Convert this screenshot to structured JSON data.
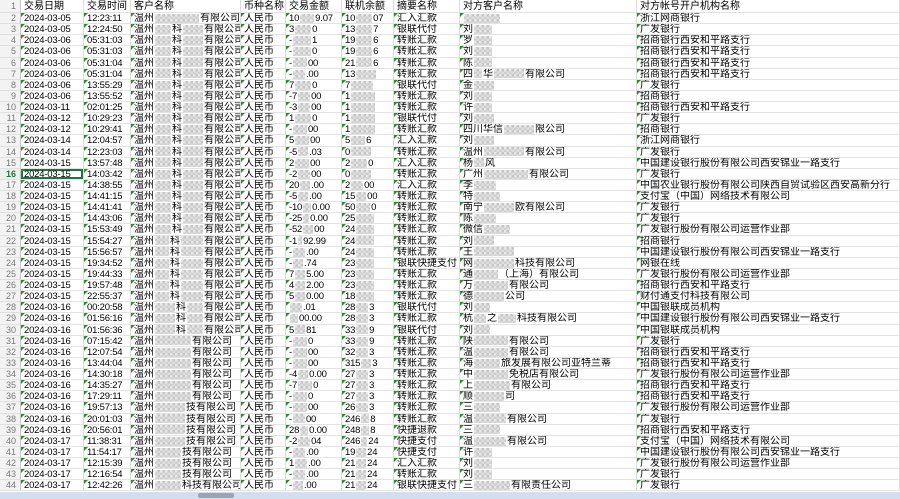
{
  "sheet": {
    "first_row_number": "1"
  },
  "columns": [
    {
      "key": "date",
      "label": "交易日期"
    },
    {
      "key": "time",
      "label": "交易时间"
    },
    {
      "key": "customer",
      "label": "客户名称"
    },
    {
      "key": "currency",
      "label": "币种名称"
    },
    {
      "key": "amount",
      "label": "交易金额"
    },
    {
      "key": "balance",
      "label": "联机余额"
    },
    {
      "key": "summary",
      "label": "摘要名称"
    },
    {
      "key": "counterparty",
      "label": "对方客户名称"
    },
    {
      "key": "bank",
      "label": "对方帐号开户机构名称"
    }
  ],
  "selection": {
    "row": 16,
    "column": "date"
  },
  "colors": {
    "triangle": "#2e8b2e",
    "selection": "#217346",
    "rownum_bg": "#f3f3f3",
    "bottom_bar": "#d3dfee"
  },
  "rows": [
    {
      "n": 2,
      "date": "2024-03-05",
      "time": "12:23:11",
      "cust": [
        "温州",
        44,
        "有限公司"
      ],
      "cur": "人民币",
      "amt": [
        "10",
        14,
        "9.07"
      ],
      "bal": [
        "10",
        16,
        "07"
      ],
      "sum": "汇入汇款",
      "cp": [
        36
      ],
      "bank": "浙江网商银行"
    },
    {
      "n": 3,
      "date": "2024-03-05",
      "time": "12:24:50",
      "cust": [
        "温州",
        16,
        "科",
        20,
        "有限公司"
      ],
      "cur": "人民币",
      "amt": [
        "3",
        16,
        "0"
      ],
      "bal": [
        "13",
        16,
        "7"
      ],
      "sum": "银联代付",
      "cp": [
        "刘",
        18
      ],
      "bank": "广发银行"
    },
    {
      "n": 4,
      "date": "2024-03-06",
      "time": "05:31:03",
      "cust": [
        "温州",
        16,
        "科",
        20,
        "有限公司"
      ],
      "cur": "人民币",
      "amt": [
        "-",
        18,
        "1"
      ],
      "bal": [
        "19",
        16,
        "6"
      ],
      "sum": "转账汇款",
      "cp": [
        "罗",
        18
      ],
      "bank": "招商银行西安和平路支行"
    },
    {
      "n": 5,
      "date": "2024-03-06",
      "time": "05:31:03",
      "cust": [
        "温州",
        16,
        "科",
        20,
        "有限公司"
      ],
      "cur": "人民币",
      "amt": [
        "-",
        18,
        "0"
      ],
      "bal": [
        "19",
        16,
        "6"
      ],
      "sum": "转账汇款",
      "cp": [
        "刘",
        18
      ],
      "bank": "招商银行西安和平路支行"
    },
    {
      "n": 6,
      "date": "2024-03-06",
      "time": "05:31:04",
      "cust": [
        "温州",
        16,
        "科",
        20,
        "有限公司"
      ],
      "cur": "人民币",
      "amt": [
        "-",
        14,
        "00"
      ],
      "bal": [
        "21",
        16,
        "6"
      ],
      "sum": "转账汇款",
      "cp": [
        "陈",
        18
      ],
      "bank": "招商银行西安和平路支行"
    },
    {
      "n": 7,
      "date": "2024-03-06",
      "time": "05:31:04",
      "cust": [
        "温州",
        16,
        "科",
        20,
        "有限公司"
      ],
      "cur": "人民币",
      "amt": [
        "-",
        12,
        ".00"
      ],
      "bal": [
        "13",
        20
      ],
      "sum": "转账汇款",
      "cp": [
        "四",
        8,
        "华",
        30,
        "有限公司"
      ],
      "bank": "招商银行西安和平路支行"
    },
    {
      "n": 8,
      "date": "2024-03-06",
      "time": "13:55:29",
      "cust": [
        "温州",
        16,
        "科",
        20,
        "有限公司"
      ],
      "cur": "人民币",
      "amt": [
        "7",
        16,
        "0"
      ],
      "bal": [
        "7",
        22
      ],
      "sum": "银联代付",
      "cp": [
        "金",
        20
      ],
      "bank": "广发银行"
    },
    {
      "n": 9,
      "date": "2024-03-06",
      "time": "13:55:52",
      "cust": [
        "温州",
        16,
        "科",
        20,
        "有限公司"
      ],
      "cur": "人民币",
      "amt": [
        "-7",
        12,
        "00"
      ],
      "bal": [
        "1",
        24
      ],
      "sum": "转账汇款",
      "cp": [
        "刘",
        18
      ],
      "bank": "招商银行"
    },
    {
      "n": 10,
      "date": "2024-03-11",
      "time": "02:01:25",
      "cust": [
        "温州",
        16,
        "科",
        20,
        "有限公司"
      ],
      "cur": "人民币",
      "amt": [
        "-3",
        12,
        "00"
      ],
      "bal": [
        "1",
        24
      ],
      "sum": "转账汇款",
      "cp": [
        "许",
        18
      ],
      "bank": "招商银行西安和平路支行"
    },
    {
      "n": 11,
      "date": "2024-03-12",
      "time": "10:29:23",
      "cust": [
        "温州",
        16,
        "科",
        20,
        "有限公司"
      ],
      "cur": "人民币",
      "amt": [
        "1",
        16,
        "0"
      ],
      "bal": [
        "1",
        24
      ],
      "sum": "银联代付",
      "cp": [
        "刘",
        20
      ],
      "bank": "广发银行"
    },
    {
      "n": 12,
      "date": "2024-03-12",
      "time": "10:29:41",
      "cust": [
        "温州",
        16,
        "科",
        20,
        "有限公司"
      ],
      "cur": "人民币",
      "amt": [
        "-",
        14,
        "00"
      ],
      "bal": [
        "1",
        24
      ],
      "sum": "转账汇款",
      "cp": [
        "四川华信",
        30,
        "限公司"
      ],
      "bank": "招商银行"
    },
    {
      "n": 13,
      "date": "2024-03-14",
      "time": "12:04:57",
      "cust": [
        "温州",
        16,
        "科",
        20,
        "有限公司"
      ],
      "cur": "人民币",
      "amt": [
        "5",
        14,
        "00"
      ],
      "bal": [
        "5",
        14,
        "6"
      ],
      "sum": "汇入汇款",
      "cp": [
        "刘",
        20
      ],
      "bank": "浙江网商银行"
    },
    {
      "n": 14,
      "date": "2024-03-14",
      "time": "12:23:03",
      "cust": [
        "温州",
        16,
        "科",
        20,
        "有限公司"
      ],
      "cur": "人民币",
      "amt": [
        "-5",
        10,
        ".03"
      ],
      "bal": [
        "0",
        20
      ],
      "sum": "转账汇款",
      "cp": [
        "温州",
        40,
        "有限公司"
      ],
      "bank": "广发银行"
    },
    {
      "n": 15,
      "date": "2024-03-15",
      "time": "13:57:48",
      "cust": [
        "温州",
        16,
        "科",
        20,
        "有限公司"
      ],
      "cur": "人民币",
      "amt": [
        "2",
        14,
        "00"
      ],
      "bal": [
        "2",
        16,
        "0"
      ],
      "sum": "汇入汇款",
      "cp": [
        "杨",
        10,
        "风"
      ],
      "bank": "中国建设银行股份有限公司西安锦业一路支行"
    },
    {
      "n": 16,
      "date": "2024-03-15",
      "time": "14:03:42",
      "cust": [
        "温州",
        16,
        "科",
        20,
        "有限公司"
      ],
      "cur": "人民币",
      "amt": [
        "-2",
        12,
        "00"
      ],
      "bal": [
        "0",
        20
      ],
      "sum": "转账汇款",
      "cp": [
        "广州",
        44,
        "有限公司"
      ],
      "bank": "广发银行"
    },
    {
      "n": 17,
      "date": "2024-03-15",
      "time": "14:38:55",
      "cust": [
        "温州",
        16,
        "科",
        20,
        "有限公司"
      ],
      "cur": "人民币",
      "amt": [
        "20",
        10,
        ".00"
      ],
      "bal": [
        "2",
        12,
        "00"
      ],
      "sum": "汇入汇款",
      "cp": [
        "李",
        22
      ],
      "bank": "中国农业银行股份有限公司陕西自贸试验区西安高新分行"
    },
    {
      "n": 18,
      "date": "2024-03-15",
      "time": "14:41:15",
      "cust": [
        "温州",
        16,
        "科",
        20,
        "有限公司"
      ],
      "cur": "人民币",
      "amt": [
        "-5",
        10,
        ".00"
      ],
      "bal": [
        "15",
        10,
        "00"
      ],
      "sum": "转账汇款",
      "cp": [
        "特",
        26
      ],
      "bank": "支付宝（中国）网络技术有限公司"
    },
    {
      "n": 19,
      "date": "2024-03-15",
      "time": "14:41:41",
      "cust": [
        "温州",
        16,
        "科",
        20,
        "有限公司"
      ],
      "cur": "人民币",
      "amt": [
        "-10",
        8,
        "0.00"
      ],
      "bal": [
        "50",
        14,
        "0"
      ],
      "sum": "转账汇款",
      "cp": [
        "南宁",
        30,
        "欧有限公司"
      ],
      "bank": "广发银行"
    },
    {
      "n": 20,
      "date": "2024-03-15",
      "time": "14:43:06",
      "cust": [
        "温州",
        16,
        "科",
        20,
        "有限公司"
      ],
      "cur": "人民币",
      "amt": [
        "-25",
        6,
        "0.00"
      ],
      "bal": [
        "25",
        18
      ],
      "sum": "转账汇款",
      "cp": [
        "陈",
        22
      ],
      "bank": "广发银行"
    },
    {
      "n": 21,
      "date": "2024-03-15",
      "time": "15:53:49",
      "cust": [
        "温州",
        16,
        "科",
        20,
        "有限公司"
      ],
      "cur": "人民币",
      "amt": [
        "-52",
        10,
        "00"
      ],
      "bal": [
        "24",
        18
      ],
      "sum": "转账汇款",
      "cp": [
        "微信",
        26
      ],
      "bank": "广发银行股份有限公司运营作业部"
    },
    {
      "n": 22,
      "date": "2024-03-15",
      "time": "15:54:27",
      "cust": [
        "温州",
        14,
        "科",
        22,
        "有限公司"
      ],
      "cur": "人民币",
      "amt": [
        "-1",
        4,
        "92.99"
      ],
      "bal": [
        "24",
        18
      ],
      "sum": "转账汇款",
      "cp": [
        "刘",
        20
      ],
      "bank": "招商银行"
    },
    {
      "n": 23,
      "date": "2024-03-15",
      "time": "15:56:57",
      "cust": [
        "温州",
        14,
        "科",
        22,
        "有限公司"
      ],
      "cur": "人民币",
      "amt": [
        "-",
        12,
        ".00"
      ],
      "bal": [
        "24",
        18
      ],
      "sum": "转账汇款",
      "cp": [
        "王",
        40
      ],
      "bank": "中国建设银行股份有限公司西安锦业一路支行"
    },
    {
      "n": 24,
      "date": "2024-03-15",
      "time": "19:34:52",
      "cust": [
        "温州",
        14,
        "科",
        22,
        "有限公司"
      ],
      "cur": "人民币",
      "amt": [
        "-",
        10,
        ".74"
      ],
      "bal": [
        "23",
        18
      ],
      "sum": "银联快捷支付",
      "cp": [
        "网",
        40,
        "科技有限公司"
      ],
      "bank": "网银在线"
    },
    {
      "n": 25,
      "date": "2024-03-15",
      "time": "19:44:33",
      "cust": [
        "温州",
        14,
        "科",
        22,
        "有限公司"
      ],
      "cur": "人民币",
      "amt": [
        "7",
        10,
        "5.00"
      ],
      "bal": [
        "23",
        18
      ],
      "sum": "转账汇款",
      "cp": [
        "通",
        24,
        "（上海）有限公司"
      ],
      "bank": "广发银行股份有限公司运营作业部"
    },
    {
      "n": 26,
      "date": "2024-03-15",
      "time": "19:57:48",
      "cust": [
        "温州",
        14,
        "科",
        22,
        "有限公司"
      ],
      "cur": "人民币",
      "amt": [
        "4",
        10,
        "2.00"
      ],
      "bal": [
        "23",
        18
      ],
      "sum": "转账汇款",
      "cp": [
        "万",
        34,
        "有限公司"
      ],
      "bank": "招商银行西安和平路支行"
    },
    {
      "n": 27,
      "date": "2024-03-15",
      "time": "22:55:37",
      "cust": [
        "温州",
        14,
        "科",
        22,
        "有限公司"
      ],
      "cur": "人民币",
      "amt": [
        "5",
        10,
        "0.00"
      ],
      "bal": [
        "18",
        18
      ],
      "sum": "转账汇款",
      "cp": [
        "德",
        30,
        "公司"
      ],
      "bank": "财付通支付科技有限公司"
    },
    {
      "n": 28,
      "date": "2024-03-16",
      "time": "00:20:58",
      "cust": [
        "温州",
        20,
        "科",
        16,
        "有限公司"
      ],
      "cur": "人民币",
      "amt": [
        12,
        ".01"
      ],
      "bal": [
        "28",
        12,
        "3"
      ],
      "sum": "银联代付",
      "cp": [
        "刘",
        16
      ],
      "bank": "中国银联成员机构"
    },
    {
      "n": 29,
      "date": "2024-03-16",
      "time": "01:56:16",
      "cust": [
        "温州",
        20,
        "科",
        16,
        "有限公司"
      ],
      "cur": "人民币",
      "amt": [
        8,
        "00.00"
      ],
      "bal": [
        "28",
        12,
        "3"
      ],
      "sum": "转账汇款",
      "cp": [
        "杭",
        12,
        "之",
        18,
        "科技有限公司"
      ],
      "bank": "中国建设银行股份有限公司西安锦业一路支行"
    },
    {
      "n": 30,
      "date": "2024-03-16",
      "time": "01:56:36",
      "cust": [
        "温州",
        20,
        "科",
        16,
        "有限公司"
      ],
      "cur": "人民币",
      "amt": [
        "5",
        10,
        "81"
      ],
      "bal": [
        "33",
        12,
        "9"
      ],
      "sum": "银联代付",
      "cp": [
        "刘",
        16
      ],
      "bank": "中国银联成员机构"
    },
    {
      "n": 31,
      "date": "2024-03-16",
      "time": "07:15:42",
      "cust": [
        "温州",
        36,
        "有限公司"
      ],
      "cur": "人民币",
      "amt": [
        "-",
        14,
        "0"
      ],
      "bal": [
        "33",
        12,
        "9"
      ],
      "sum": "转账汇款",
      "cp": [
        "陕",
        34,
        "有限公司"
      ],
      "bank": "广发银行"
    },
    {
      "n": 32,
      "date": "2024-03-16",
      "time": "12:07:54",
      "cust": [
        "温州",
        36,
        "有限公司"
      ],
      "cur": "人民币",
      "amt": [
        "-",
        14,
        "00"
      ],
      "bal": [
        "32",
        12,
        "3"
      ],
      "sum": "转账汇款",
      "cp": [
        "温",
        34,
        "有限公司"
      ],
      "bank": "招商银行西安和平路支行"
    },
    {
      "n": 33,
      "date": "2024-03-16",
      "time": "13:44:04",
      "cust": [
        "温州",
        36,
        "有限公司"
      ],
      "cur": "人民币",
      "amt": [
        "-",
        14,
        "00"
      ],
      "bal": [
        "315",
        10,
        "3"
      ],
      "sum": "转账汇款",
      "cp": [
        "海",
        26,
        "旅发展有限公司亚特兰蒂"
      ],
      "bank": "招商银行西安和平路支行"
    },
    {
      "n": 34,
      "date": "2024-03-16",
      "time": "14:30:18",
      "cust": [
        "温州",
        36,
        "有限公司"
      ],
      "cur": "人民币",
      "amt": [
        "-4",
        10,
        "0.00"
      ],
      "bal": [
        "27",
        12,
        "3"
      ],
      "sum": "转账汇款",
      "cp": [
        "中",
        34,
        "免税店有限公司"
      ],
      "bank": "广发银行股份有限公司运营作业部"
    },
    {
      "n": 35,
      "date": "2024-03-16",
      "time": "14:35:27",
      "cust": [
        "温州",
        36,
        "有限公司"
      ],
      "cur": "人民币",
      "amt": [
        "-7",
        14,
        "0"
      ],
      "bal": [
        "27",
        12,
        "3"
      ],
      "sum": "转账汇款",
      "cp": [
        "上",
        36,
        "有限公司"
      ],
      "bank": "招商银行西安和平路支行"
    },
    {
      "n": 36,
      "date": "2024-03-16",
      "time": "17:29:11",
      "cust": [
        "温州",
        36,
        "有限公司"
      ],
      "cur": "人民币",
      "amt": [
        "-",
        14,
        "0"
      ],
      "bal": [
        "27",
        12,
        "3"
      ],
      "sum": "转账汇款",
      "cp": [
        "顺",
        30,
        "司"
      ],
      "bank": "招商银行西安和平路支行"
    },
    {
      "n": 37,
      "date": "2024-03-16",
      "time": "19:57:13",
      "cust": [
        "温州",
        30,
        "技有限公司"
      ],
      "cur": "人民币",
      "amt": [
        "-",
        14,
        "00"
      ],
      "bal": [
        "26",
        12,
        "3"
      ],
      "sum": "转账汇款",
      "cp": [
        "三",
        26
      ],
      "bank": "广发银行股份有限公司运营作业部"
    },
    {
      "n": 38,
      "date": "2024-03-16",
      "time": "20:01:03",
      "cust": [
        "温州",
        30,
        "技有限公司"
      ],
      "cur": "人民币",
      "amt": [
        "-",
        12,
        "00"
      ],
      "bal": [
        "246",
        8,
        "8"
      ],
      "sum": "转账汇款",
      "cp": [
        "温",
        32,
        "有限公司"
      ],
      "bank": "广发银行"
    },
    {
      "n": 39,
      "date": "2024-03-16",
      "time": "20:56:01",
      "cust": [
        "温州",
        30,
        "技有限公司"
      ],
      "cur": "人民币",
      "amt": [
        "28",
        8,
        "0.00"
      ],
      "bal": [
        "248",
        8,
        "8"
      ],
      "sum": "快捷退款",
      "cp": [
        "三",
        26
      ],
      "bank": "招商银行西安和平路支行"
    },
    {
      "n": 40,
      "date": "2024-03-17",
      "time": "11:38:31",
      "cust": [
        "温州",
        30,
        "技有限公司"
      ],
      "cur": "人民币",
      "amt": [
        "-2",
        12,
        "04"
      ],
      "bal": [
        "246",
        6,
        "24"
      ],
      "sum": "快捷支付",
      "cp": [
        "温",
        32,
        "有限公司"
      ],
      "bank": "支付宝（中国）网络技术有限公司"
    },
    {
      "n": 41,
      "date": "2024-03-17",
      "time": "11:54:17",
      "cust": [
        "温州",
        26,
        "技有限公司"
      ],
      "cur": "人民币",
      "amt": [
        "-",
        12,
        ".00"
      ],
      "bal": [
        "19",
        10,
        "24"
      ],
      "sum": "快捷支付",
      "cp": [
        "许",
        18
      ],
      "bank": "中国建设银行股份有限公司西安锦业一路支行"
    },
    {
      "n": 42,
      "date": "2024-03-17",
      "time": "12:15:39",
      "cust": [
        "温州",
        26,
        "技有限公司"
      ],
      "cur": "人民币",
      "amt": [
        "1",
        12,
        ".00"
      ],
      "bal": [
        "21",
        10,
        "24"
      ],
      "sum": "汇入汇款",
      "cp": [
        "刘",
        18
      ],
      "bank": "广发银行股份有限公司运营作业部"
    },
    {
      "n": 43,
      "date": "2024-03-17",
      "time": "12:16:54",
      "cust": [
        "温州",
        26,
        "技有限公司"
      ],
      "cur": "人民币",
      "amt": [
        "-",
        12,
        ".00"
      ],
      "bal": [
        "21",
        10,
        "24"
      ],
      "sum": "转账汇款",
      "cp": [
        "刘",
        18
      ],
      "bank": "广发银行"
    },
    {
      "n": 44,
      "date": "2024-03-17",
      "time": "12:42:26",
      "cust": [
        "温州",
        26,
        "科技有限公司"
      ],
      "cur": "人民币",
      "amt": [
        "-",
        10,
        ".00"
      ],
      "bal": [
        "21",
        10,
        "24"
      ],
      "sum": "银联快捷支付",
      "cp": [
        "三",
        36,
        "有限责任公司"
      ],
      "bank": "广发银行"
    }
  ]
}
